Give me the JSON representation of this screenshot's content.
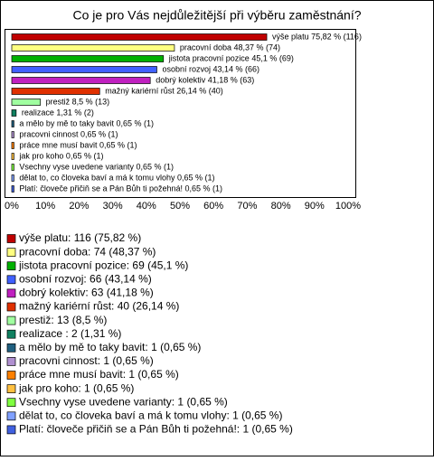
{
  "chart_data": {
    "type": "bar",
    "orientation": "horizontal",
    "title": "Co je pro Vás nejdůležitější při výběru zaměstnání?",
    "values": [
      75.82,
      48.37,
      45.1,
      43.14,
      41.18,
      26.14,
      8.5,
      1.31,
      0.65,
      0.65,
      0.65,
      0.65,
      0.65,
      0.65,
      0.65
    ],
    "value_labels": [
      "výše platu 75,82 % (116)",
      "pracovní doba 48,37 % (74)",
      "jistota pracovní pozice 45,1 % (69)",
      "osobní rozvoj 43,14 % (66)",
      "dobrý kolektiv 41,18 % (63)",
      "mažný kariérní růst 26,14 % (40)",
      "prestiž 8,5 % (13)",
      "realizace 1,31 % (2)",
      "a mělo by mě to taky bavit 0,65 % (1)",
      "pracovni cinnost 0,65 % (1)",
      "práce mne musí bavit 0,65 % (1)",
      "jak pro koho 0,65 % (1)",
      "Vsechny vyse uvedene varianty 0,65 % (1)",
      "dělat to, co človeka baví a má k tomu vlohy 0,65 % (1)",
      "Platí: človeče přičiň se a Pán Bůh ti požehná! 0,65 % (1)"
    ],
    "legend": [
      "výše platu: 116 (75,82 %)",
      "pracovní doba: 74 (48,37 %)",
      "jistota pracovní pozice: 69 (45,1 %)",
      "osobní rozvoj: 66 (43,14 %)",
      "dobrý kolektiv: 63 (41,18 %)",
      "mažný kariérní růst: 40 (26,14 %)",
      "prestiž: 13 (8,5 %)",
      "realizace : 2 (1,31 %)",
      "a mělo by mě to taky bavit: 1 (0,65 %)",
      "pracovni cinnost: 1 (0,65 %)",
      "práce mne musí bavit: 1 (0,65 %)",
      "jak pro koho: 1 (0,65 %)",
      "Vsechny vyse uvedene varianty: 1 (0,65 %)",
      "dělat to, co človeka baví a má k tomu vlohy: 1 (0,65 %)",
      "Platí: človeče přičiň se a Pán Bůh ti požehná!: 1 (0,65 %)"
    ],
    "colors": [
      "#c00000",
      "#ffff80",
      "#00b000",
      "#4060ff",
      "#c020c0",
      "#e03000",
      "#a0ffa0",
      "#108060",
      "#206080",
      "#b090d0",
      "#ff8000",
      "#ffc040",
      "#80ff40",
      "#80a0ff",
      "#4060e0"
    ],
    "xlim": [
      0,
      100
    ],
    "xticks": [
      {
        "value": 0,
        "label": "0%"
      },
      {
        "value": 10,
        "label": "10%"
      },
      {
        "value": 20,
        "label": "20%"
      },
      {
        "value": 30,
        "label": "30%"
      },
      {
        "value": 40,
        "label": "40%"
      },
      {
        "value": 50,
        "label": "50%"
      },
      {
        "value": 60,
        "label": "60%"
      },
      {
        "value": 70,
        "label": "70%"
      },
      {
        "value": 80,
        "label": "80%"
      },
      {
        "value": 90,
        "label": "90%"
      },
      {
        "value": 100,
        "label": "100%"
      }
    ]
  }
}
